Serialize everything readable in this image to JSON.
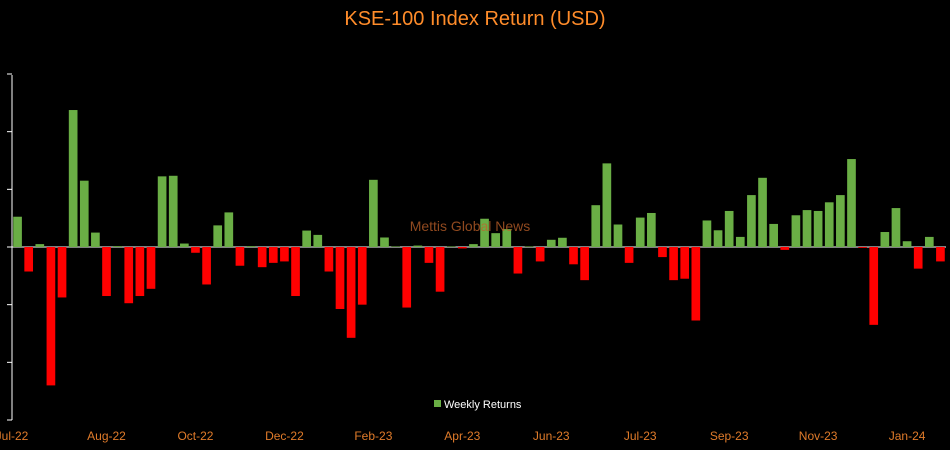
{
  "chart_data": {
    "type": "bar",
    "title": "KSE-100 Index Return (USD)",
    "watermark": "Mettis Global News",
    "legend": {
      "label": "Weekly Returns",
      "placement": "bottom-center"
    },
    "colors": {
      "positive": "#6aae45",
      "negative": "#ff0000",
      "title": "#ff8c2a",
      "axis": "#ffffff",
      "tick_label": "#e07b2a"
    },
    "grid": false,
    "ylim": [
      -6,
      6
    ],
    "x_tick_labels": [
      "Jul-22",
      "Aug-22",
      "Oct-22",
      "Dec-22",
      "Feb-23",
      "Apr-23",
      "Jun-23",
      "Jul-23",
      "Sep-23",
      "Nov-23",
      "Jan-24"
    ],
    "x_tick_positions": [
      0,
      8.5,
      16.5,
      24.5,
      32.5,
      40.5,
      48.5,
      56.5,
      64.5,
      72.5,
      80.5
    ],
    "values": [
      1.05,
      -0.85,
      0.1,
      -4.8,
      -1.75,
      4.75,
      2.3,
      0.5,
      -1.7,
      0.03,
      -1.95,
      -1.7,
      -1.45,
      2.45,
      2.47,
      0.12,
      -0.2,
      -1.3,
      0.75,
      1.2,
      -0.65,
      0.03,
      -0.7,
      -0.55,
      -0.5,
      -1.7,
      0.57,
      0.42,
      -0.85,
      -2.15,
      -3.15,
      -2.0,
      2.33,
      0.33,
      0.02,
      -2.1,
      0.05,
      -0.55,
      -1.55,
      0.02,
      -0.05,
      0.1,
      0.98,
      0.48,
      0.62,
      -0.92,
      0.02,
      -0.5,
      0.25,
      0.32,
      -0.6,
      -1.15,
      1.45,
      2.9,
      0.78,
      -0.55,
      1.02,
      1.18,
      -0.35,
      -1.15,
      -1.1,
      -2.55,
      0.92,
      0.58,
      1.25,
      0.35,
      1.8,
      2.4,
      0.8,
      -0.1,
      1.1,
      1.28,
      1.25,
      1.55,
      1.8,
      3.05,
      -0.03,
      -2.7,
      0.52,
      1.35,
      0.2,
      -0.75,
      0.35,
      -0.5
    ]
  }
}
